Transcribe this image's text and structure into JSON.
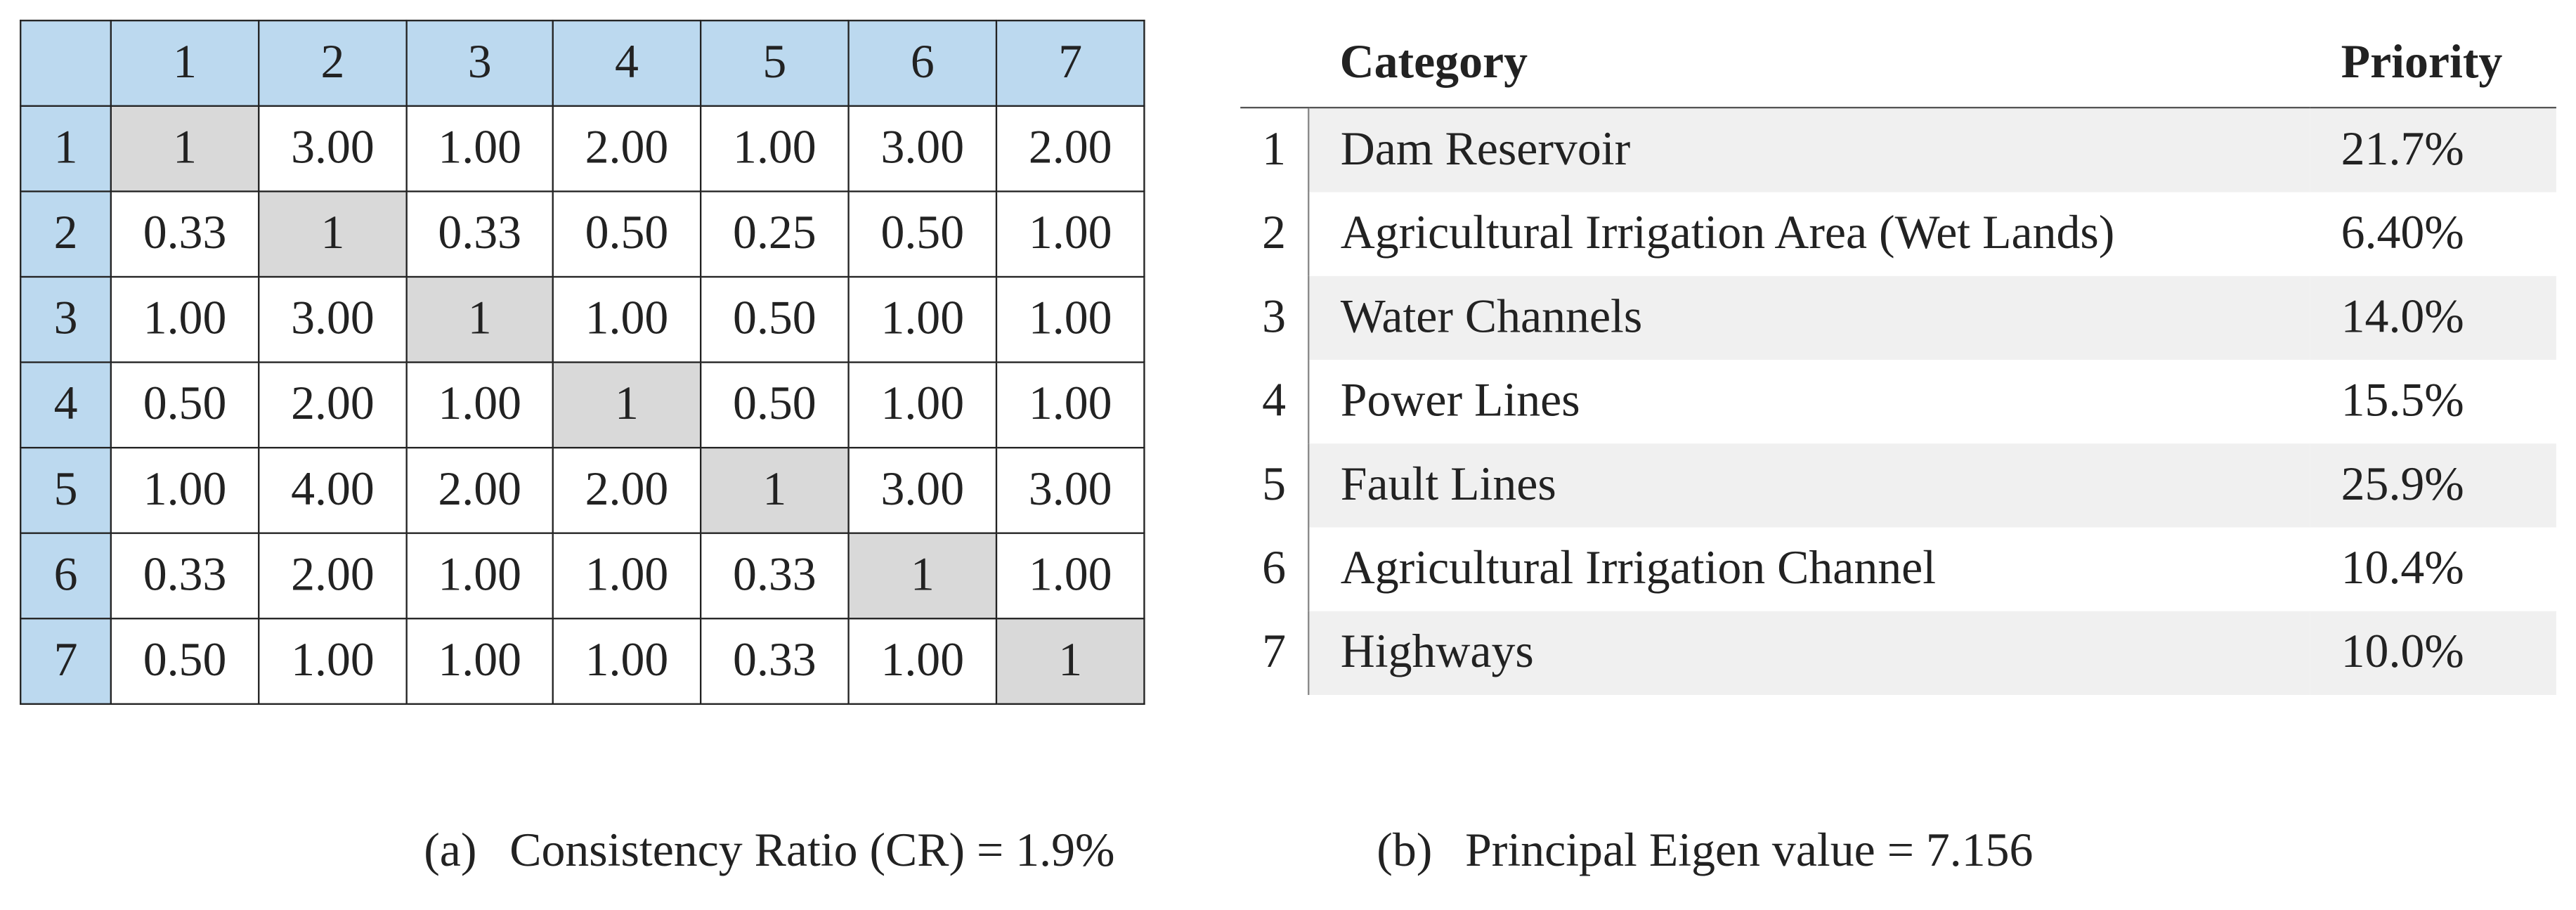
{
  "matrix": {
    "header": [
      "1",
      "2",
      "3",
      "4",
      "5",
      "6",
      "7"
    ],
    "rows": [
      {
        "label": "1",
        "cells": [
          "1",
          "3.00",
          "1.00",
          "2.00",
          "1.00",
          "3.00",
          "2.00"
        ]
      },
      {
        "label": "2",
        "cells": [
          "0.33",
          "1",
          "0.33",
          "0.50",
          "0.25",
          "0.50",
          "1.00"
        ]
      },
      {
        "label": "3",
        "cells": [
          "1.00",
          "3.00",
          "1",
          "1.00",
          "0.50",
          "1.00",
          "1.00"
        ]
      },
      {
        "label": "4",
        "cells": [
          "0.50",
          "2.00",
          "1.00",
          "1",
          "0.50",
          "1.00",
          "1.00"
        ]
      },
      {
        "label": "5",
        "cells": [
          "1.00",
          "4.00",
          "2.00",
          "2.00",
          "1",
          "3.00",
          "3.00"
        ]
      },
      {
        "label": "6",
        "cells": [
          "0.33",
          "2.00",
          "1.00",
          "1.00",
          "0.33",
          "1",
          "1.00"
        ]
      },
      {
        "label": "7",
        "cells": [
          "0.50",
          "1.00",
          "1.00",
          "1.00",
          "0.33",
          "1.00",
          "1"
        ]
      }
    ]
  },
  "priorities": {
    "header": [
      "Category",
      "Priority"
    ],
    "rows": [
      {
        "index": "1",
        "category": "Dam Reservoir",
        "priority": "21.7%"
      },
      {
        "index": "2",
        "category": "Agricultural Irrigation Area (Wet Lands)",
        "priority": "6.40%"
      },
      {
        "index": "3",
        "category": "Water Channels",
        "priority": "14.0%"
      },
      {
        "index": "4",
        "category": "Power Lines",
        "priority": "15.5%"
      },
      {
        "index": "5",
        "category": "Fault Lines",
        "priority": "25.9%"
      },
      {
        "index": "6",
        "category": "Agricultural Irrigation Channel",
        "priority": "10.4%"
      },
      {
        "index": "7",
        "category": "Highways",
        "priority": "10.0%"
      }
    ]
  },
  "captions": [
    {
      "label": "(a)",
      "text": "Consistency Ratio (CR) = 1.9%"
    },
    {
      "label": "(b)",
      "text": "Principal Eigen value = 7.156"
    }
  ]
}
